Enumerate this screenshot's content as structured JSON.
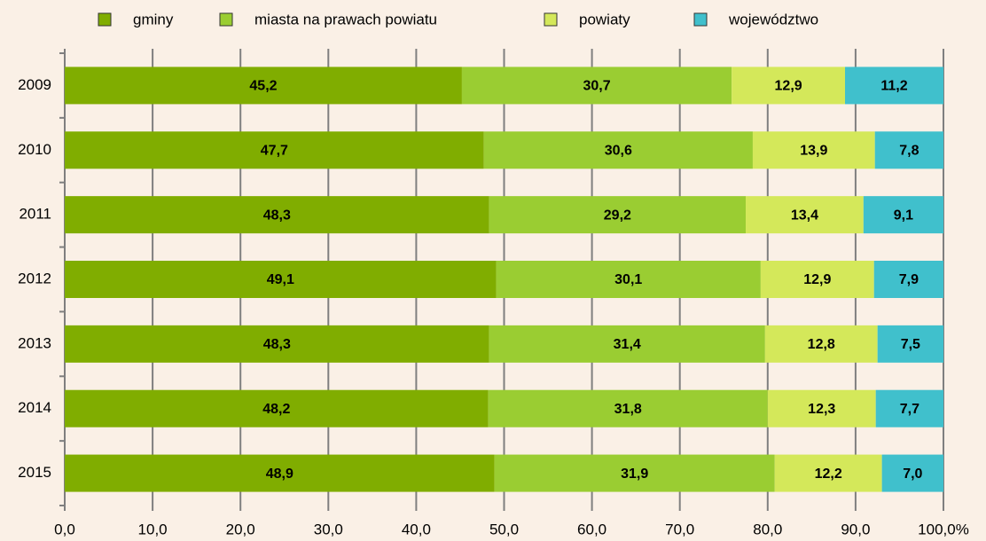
{
  "chart_data": {
    "type": "stacked_barh",
    "categories": [
      "2009",
      "2010",
      "2011",
      "2012",
      "2013",
      "2014",
      "2015"
    ],
    "series": [
      {
        "name": "gminy",
        "color": "#80ad00",
        "values": [
          45.2,
          47.7,
          48.3,
          49.1,
          48.3,
          48.2,
          48.9
        ],
        "value_labels": [
          "45,2",
          "47,7",
          "48,3",
          "49,1",
          "48,3",
          "48,2",
          "48,9"
        ]
      },
      {
        "name": "miasta na prawach powiatu",
        "color": "#9acd32",
        "values": [
          30.7,
          30.6,
          29.2,
          30.1,
          31.4,
          31.8,
          31.9
        ],
        "value_labels": [
          "30,7",
          "30,6",
          "29,2",
          "30,1",
          "31,4",
          "31,8",
          "31,9"
        ]
      },
      {
        "name": "powiaty",
        "color": "#d4e85a",
        "values": [
          12.9,
          13.9,
          13.4,
          12.9,
          12.8,
          12.3,
          12.2
        ],
        "value_labels": [
          "12,9",
          "13,9",
          "13,4",
          "12,9",
          "12,8",
          "12,3",
          "12,2"
        ]
      },
      {
        "name": "województwo",
        "color": "#40c0cc",
        "values": [
          11.2,
          7.8,
          9.1,
          7.9,
          7.5,
          7.7,
          7.0
        ],
        "value_labels": [
          "11,2",
          "7,8",
          "9,1",
          "7,9",
          "7,5",
          "7,7",
          "7,0"
        ]
      }
    ],
    "xlim": [
      0,
      100
    ],
    "xticks": [
      {
        "value": 0,
        "label": "0,0"
      },
      {
        "value": 10,
        "label": "10,0"
      },
      {
        "value": 20,
        "label": "20,0"
      },
      {
        "value": 30,
        "label": "30,0"
      },
      {
        "value": 40,
        "label": "40,0"
      },
      {
        "value": 50,
        "label": "50,0"
      },
      {
        "value": 60,
        "label": "60,0"
      },
      {
        "value": 70,
        "label": "70,0"
      },
      {
        "value": 80,
        "label": "80,0"
      },
      {
        "value": 90,
        "label": "90,0"
      },
      {
        "value": 100,
        "label": "100,0%"
      }
    ],
    "grid": true,
    "legend": "top"
  }
}
